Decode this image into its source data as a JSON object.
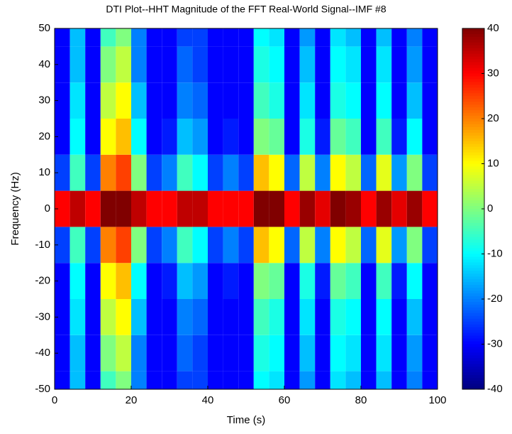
{
  "chart_data": {
    "type": "heatmap",
    "title": "DTI Plot--HHT Magnitude of the FFT Real-World Signal--IMF #8",
    "xlabel": "Time (s)",
    "ylabel": "Frequency (Hz)",
    "x": [
      2,
      6,
      10,
      14,
      18,
      22,
      26,
      30,
      34,
      38,
      42,
      46,
      50,
      54,
      58,
      62,
      66,
      70,
      74,
      78,
      82,
      86,
      90,
      94,
      98
    ],
    "y": [
      -50,
      -40,
      -30,
      -20,
      -10,
      0,
      10,
      20,
      30,
      40,
      50
    ],
    "z": [
      [
        -30,
        -15,
        -30,
        -5,
        0,
        -20,
        -30,
        -30,
        -25,
        -25,
        -30,
        -30,
        -30,
        -10,
        -12,
        -30,
        -18,
        -30,
        -12,
        -15,
        -30,
        -15,
        -30,
        -20,
        -30
      ],
      [
        -30,
        -15,
        -30,
        0,
        5,
        -20,
        -30,
        -30,
        -22,
        -25,
        -30,
        -30,
        -30,
        -8,
        -10,
        -30,
        -15,
        -30,
        -10,
        -12,
        -30,
        -12,
        -30,
        -18,
        -30
      ],
      [
        -30,
        -12,
        -30,
        5,
        10,
        -15,
        -30,
        -30,
        -20,
        -22,
        -30,
        -30,
        -30,
        -5,
        -8,
        -30,
        -12,
        -30,
        -8,
        -10,
        -30,
        -10,
        -30,
        -15,
        -30
      ],
      [
        -30,
        -10,
        -30,
        10,
        15,
        -10,
        -30,
        -28,
        -15,
        -18,
        -30,
        -28,
        -30,
        0,
        -2,
        -30,
        -8,
        -28,
        -2,
        -5,
        -30,
        -5,
        -28,
        -10,
        -30
      ],
      [
        -25,
        -5,
        -25,
        20,
        25,
        0,
        -25,
        -20,
        -5,
        -10,
        -25,
        -20,
        -25,
        15,
        10,
        -22,
        5,
        -20,
        10,
        5,
        -22,
        8,
        -18,
        0,
        -25
      ],
      [
        30,
        35,
        30,
        40,
        40,
        35,
        30,
        30,
        35,
        35,
        30,
        30,
        30,
        40,
        40,
        30,
        38,
        32,
        40,
        38,
        30,
        38,
        32,
        38,
        30
      ],
      [
        -25,
        -5,
        -25,
        20,
        25,
        0,
        -25,
        -20,
        -5,
        -10,
        -25,
        -20,
        -25,
        15,
        10,
        -22,
        5,
        -20,
        10,
        5,
        -22,
        8,
        -18,
        0,
        -25
      ],
      [
        -30,
        -10,
        -30,
        10,
        15,
        -10,
        -30,
        -28,
        -15,
        -18,
        -30,
        -28,
        -30,
        0,
        -2,
        -30,
        -8,
        -28,
        -2,
        -5,
        -30,
        -5,
        -28,
        -10,
        -30
      ],
      [
        -30,
        -12,
        -30,
        5,
        10,
        -15,
        -30,
        -30,
        -20,
        -22,
        -30,
        -30,
        -30,
        -5,
        -8,
        -30,
        -12,
        -30,
        -8,
        -10,
        -30,
        -10,
        -30,
        -15,
        -30
      ],
      [
        -30,
        -15,
        -30,
        0,
        5,
        -20,
        -30,
        -30,
        -22,
        -25,
        -30,
        -30,
        -30,
        -8,
        -10,
        -30,
        -15,
        -30,
        -10,
        -12,
        -30,
        -12,
        -30,
        -18,
        -30
      ],
      [
        -30,
        -15,
        -30,
        -5,
        0,
        -20,
        -30,
        -30,
        -25,
        -25,
        -30,
        -30,
        -30,
        -10,
        -12,
        -30,
        -18,
        -30,
        -12,
        -15,
        -30,
        -15,
        -30,
        -20,
        -30
      ]
    ],
    "colormap": "jet",
    "xlim": [
      0,
      100
    ],
    "xticks": [
      0,
      20,
      40,
      60,
      80,
      100
    ],
    "ylim": [
      -50,
      50
    ],
    "yticks": [
      -50,
      -40,
      -30,
      -20,
      -10,
      0,
      10,
      20,
      30,
      40,
      50
    ],
    "clim": [
      -40,
      40
    ],
    "cticks": [
      -40,
      -30,
      -20,
      -10,
      0,
      10,
      20,
      30,
      40
    ]
  }
}
